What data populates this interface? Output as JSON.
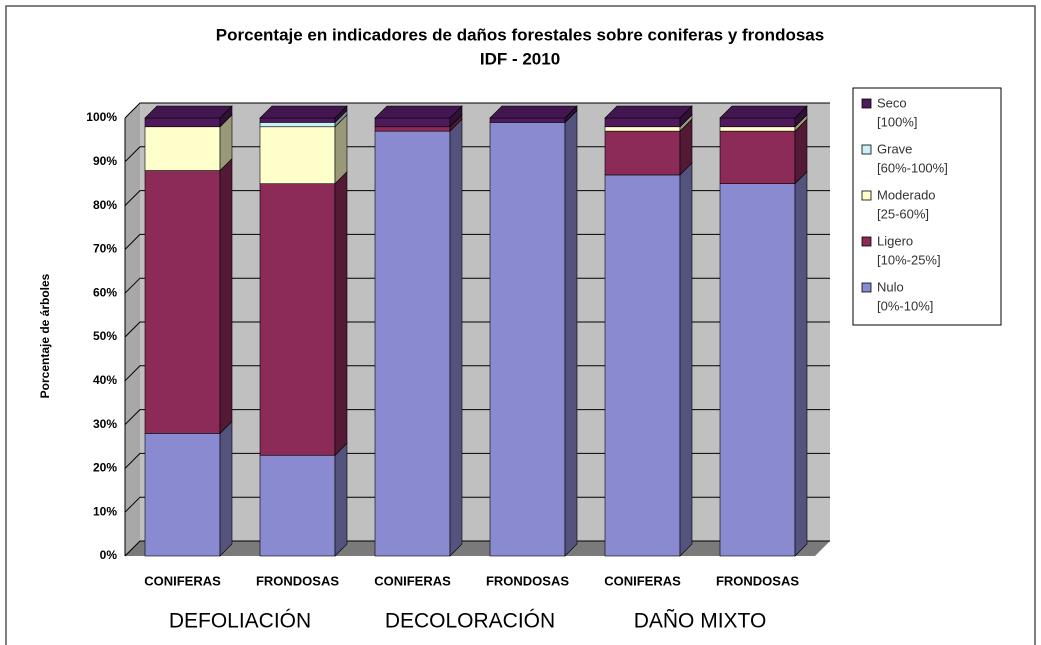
{
  "chart_data": {
    "type": "bar_stacked_3d",
    "title": "Porcentaje en indicadores de daños forestales sobre coniferas y frondosas",
    "subtitle": "IDF - 2010",
    "y_label": "Porcentaje de árboles",
    "categories": [
      "CONIFERAS",
      "FRONDOSAS",
      "CONIFERAS",
      "FRONDOSAS",
      "CONIFERAS",
      "FRONDOSAS"
    ],
    "groups": [
      "DEFOLIACIÓN",
      "DECOLORACIÓN",
      "DAÑO MIXTO"
    ],
    "series": [
      {
        "name": "Nulo",
        "range": "[0%-10%]",
        "color": "#8a8ad0",
        "values": [
          28,
          23,
          97,
          99,
          87,
          85
        ]
      },
      {
        "name": "Ligero",
        "range": "[10%-25%]",
        "color": "#8c2a58",
        "values": [
          60,
          62,
          1,
          0,
          10,
          12
        ]
      },
      {
        "name": "Moderado",
        "range": "[25-60%]",
        "color": "#ffffcc",
        "values": [
          10,
          13,
          0,
          0,
          1,
          1
        ]
      },
      {
        "name": "Grave",
        "range": "[60%-100%]",
        "color": "#ccf0f8",
        "values": [
          0,
          1,
          0,
          0,
          0,
          0
        ]
      },
      {
        "name": "Seco",
        "range": "[100%]",
        "color": "#4e1a5c",
        "values": [
          2,
          1,
          2,
          1,
          2,
          2
        ]
      }
    ],
    "ylim": [
      0,
      100
    ],
    "yticks": [
      {
        "value": 0,
        "label": "0%"
      },
      {
        "value": 10,
        "label": "10%"
      },
      {
        "value": 20,
        "label": "20%"
      },
      {
        "value": 30,
        "label": "30%"
      },
      {
        "value": 40,
        "label": "40%"
      },
      {
        "value": 50,
        "label": "50%"
      },
      {
        "value": 60,
        "label": "60%"
      },
      {
        "value": 70,
        "label": "70%"
      },
      {
        "value": 80,
        "label": "80%"
      },
      {
        "value": 90,
        "label": "90%"
      },
      {
        "value": 100,
        "label": "100%"
      }
    ],
    "grid": true
  }
}
